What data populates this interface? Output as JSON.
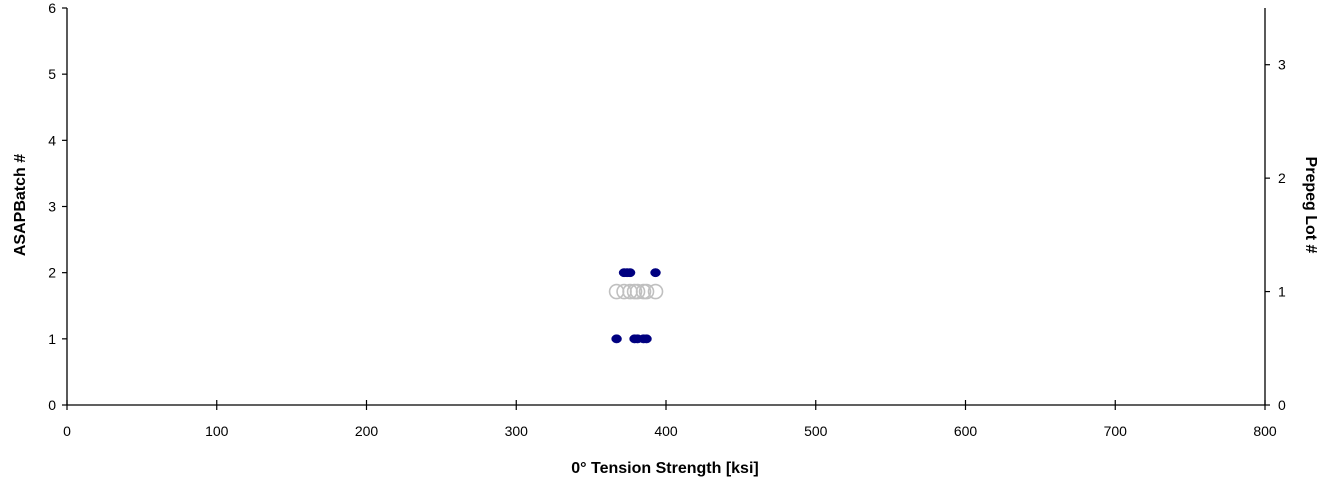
{
  "chart_data": {
    "type": "scatter",
    "xlabel": "0° Tension Strength  [ksi]",
    "ylabel": "ASAPBatch #",
    "y2label": "Prepeg Lot #",
    "xlim": [
      0,
      800
    ],
    "ylim": [
      0,
      6
    ],
    "y2lim": [
      0,
      3.5
    ],
    "xticks": [
      0,
      100,
      200,
      300,
      400,
      500,
      600,
      700,
      800
    ],
    "yticks": [
      0,
      1,
      2,
      3,
      4,
      5,
      6
    ],
    "y2ticks": [
      0,
      1,
      2,
      3
    ],
    "grid": false,
    "series": [
      {
        "axis": "left",
        "marker": "filled-circle",
        "color": "#000080",
        "points": [
          {
            "x": 367,
            "y": 1
          },
          {
            "x": 379,
            "y": 1
          },
          {
            "x": 381,
            "y": 1
          },
          {
            "x": 385,
            "y": 1
          },
          {
            "x": 387,
            "y": 1
          },
          {
            "x": 372,
            "y": 2
          },
          {
            "x": 374,
            "y": 2
          },
          {
            "x": 376,
            "y": 2
          },
          {
            "x": 393,
            "y": 2
          }
        ]
      },
      {
        "axis": "right",
        "marker": "open-circle",
        "color": "#c0c0c0",
        "points": [
          {
            "x": 367,
            "y": 1
          },
          {
            "x": 372,
            "y": 1
          },
          {
            "x": 376,
            "y": 1
          },
          {
            "x": 379,
            "y": 1
          },
          {
            "x": 381,
            "y": 1
          },
          {
            "x": 385,
            "y": 1
          },
          {
            "x": 387,
            "y": 1
          },
          {
            "x": 393,
            "y": 1
          }
        ]
      }
    ]
  }
}
